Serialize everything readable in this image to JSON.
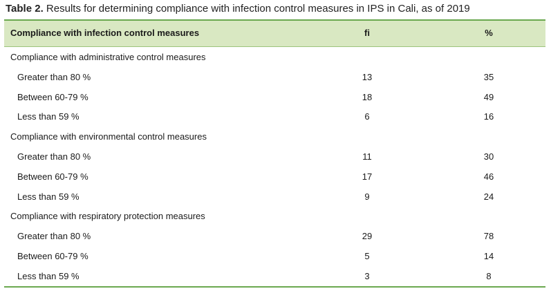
{
  "caption": {
    "label": "Table 2.",
    "text": "Results for determining compliance with infection control measures in IPS in Cali, as of 2019"
  },
  "header": {
    "measure": "Compliance with infection control measures",
    "fi": "fi",
    "pct": "%"
  },
  "groups": [
    {
      "title": "Compliance with administrative control measures",
      "rows": [
        {
          "label": "Greater than 80 %",
          "fi": "13",
          "pct": "35"
        },
        {
          "label": "Between 60-79 %",
          "fi": "18",
          "pct": "49"
        },
        {
          "label": "Less than 59 %",
          "fi": "6",
          "pct": "16"
        }
      ]
    },
    {
      "title": "Compliance with environmental control measures",
      "rows": [
        {
          "label": "Greater than 80 %",
          "fi": "11",
          "pct": "30"
        },
        {
          "label": "Between 60-79 %",
          "fi": "17",
          "pct": "46"
        },
        {
          "label": "Less than 59 %",
          "fi": "9",
          "pct": "24"
        }
      ]
    },
    {
      "title": "Compliance with respiratory protection measures",
      "rows": [
        {
          "label": "Greater than 80 %",
          "fi": "29",
          "pct": "78"
        },
        {
          "label": "Between 60-79 %",
          "fi": "5",
          "pct": "14"
        },
        {
          "label": "Less than 59 %",
          "fi": "3",
          "pct": "8"
        }
      ]
    }
  ],
  "colors": {
    "header_bg": "#d9e8c2",
    "rule": "#6aa84f"
  }
}
